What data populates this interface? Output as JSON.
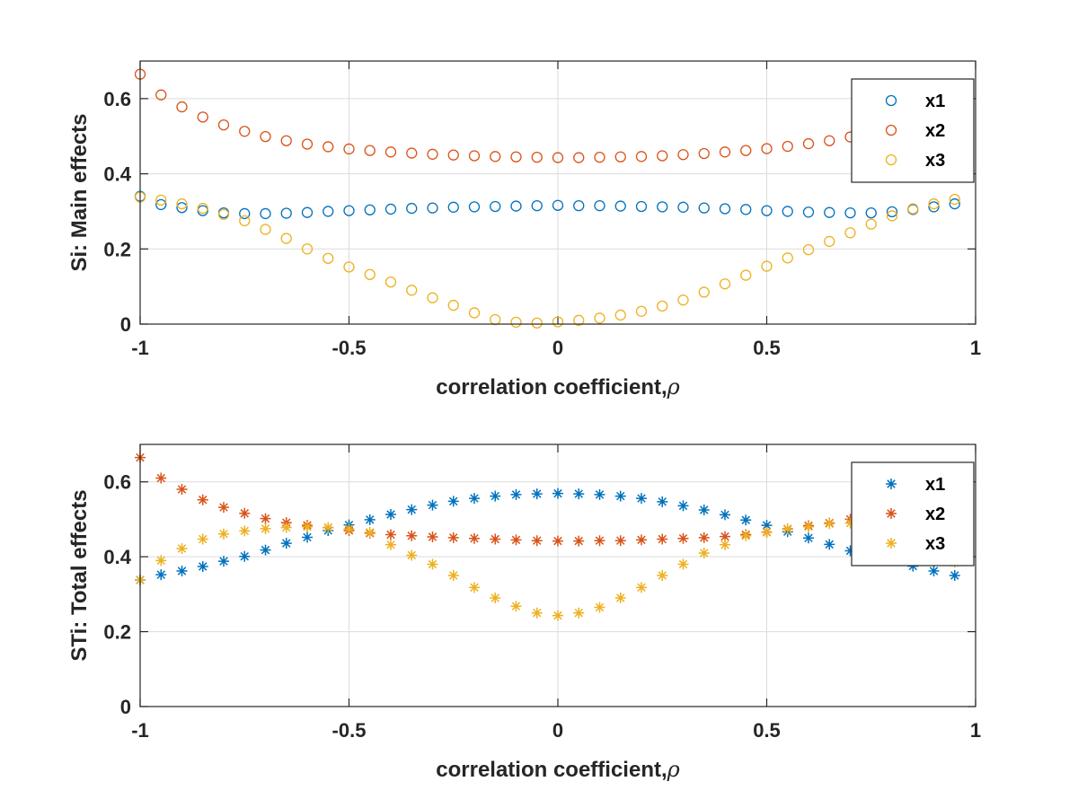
{
  "chart_data": [
    {
      "type": "scatter",
      "marker": "circle",
      "ylabel": "Si: Main effects",
      "xlabel": "correlation coefficient,",
      "xlabel_symbol": "ρ",
      "xlim": [
        -1,
        1
      ],
      "ylim": [
        0,
        0.7
      ],
      "xticks": [
        -1,
        -0.5,
        0,
        0.5,
        1
      ],
      "xtick_labels": [
        "-1",
        "-0.5",
        "0",
        "0.5",
        "1"
      ],
      "yticks": [
        0,
        0.2,
        0.4,
        0.6
      ],
      "ytick_labels": [
        "0",
        "0.2",
        "0.4",
        "0.6"
      ],
      "grid": true,
      "legend": "top-right",
      "x": [
        -1,
        -0.95,
        -0.9,
        -0.85,
        -0.8,
        -0.75,
        -0.7,
        -0.65,
        -0.6,
        -0.55,
        -0.5,
        -0.45,
        -0.4,
        -0.35,
        -0.3,
        -0.25,
        -0.2,
        -0.15,
        -0.1,
        -0.05,
        0,
        0.05,
        0.1,
        0.15,
        0.2,
        0.25,
        0.3,
        0.35,
        0.4,
        0.45,
        0.5,
        0.55,
        0.6,
        0.65,
        0.7,
        0.75,
        0.8,
        0.85,
        0.9,
        0.95
      ],
      "series": [
        {
          "name": "x1",
          "color": "#0072bd",
          "values": [
            0.34,
            0.318,
            0.31,
            0.302,
            0.296,
            0.294,
            0.294,
            0.295,
            0.297,
            0.3,
            0.302,
            0.304,
            0.306,
            0.308,
            0.309,
            0.311,
            0.312,
            0.313,
            0.314,
            0.315,
            0.316,
            0.315,
            0.315,
            0.314,
            0.313,
            0.312,
            0.311,
            0.309,
            0.307,
            0.305,
            0.302,
            0.3,
            0.298,
            0.297,
            0.296,
            0.296,
            0.299,
            0.305,
            0.312,
            0.32
          ]
        },
        {
          "name": "x2",
          "color": "#d95319",
          "values": [
            0.665,
            0.61,
            0.578,
            0.551,
            0.53,
            0.513,
            0.499,
            0.488,
            0.479,
            0.472,
            0.466,
            0.462,
            0.458,
            0.455,
            0.452,
            0.45,
            0.448,
            0.446,
            0.445,
            0.444,
            0.443,
            0.443,
            0.444,
            0.445,
            0.446,
            0.448,
            0.451,
            0.454,
            0.458,
            0.462,
            0.467,
            0.473,
            0.48,
            0.488,
            0.498,
            0.51,
            0.525,
            0.545,
            0.57,
            0.61
          ]
        },
        {
          "name": "x3",
          "color": "#edb120",
          "values": [
            0.338,
            0.33,
            0.32,
            0.308,
            0.292,
            0.275,
            0.252,
            0.228,
            0.2,
            0.175,
            0.152,
            0.132,
            0.112,
            0.09,
            0.07,
            0.05,
            0.03,
            0.012,
            0.005,
            0.003,
            0.006,
            0.01,
            0.016,
            0.024,
            0.034,
            0.048,
            0.064,
            0.085,
            0.107,
            0.13,
            0.154,
            0.176,
            0.198,
            0.22,
            0.243,
            0.266,
            0.288,
            0.307,
            0.32,
            0.332
          ]
        }
      ]
    },
    {
      "type": "scatter",
      "marker": "asterisk",
      "ylabel": "STi: Total effects",
      "xlabel": "correlation coefficient,",
      "xlabel_symbol": "ρ",
      "xlim": [
        -1,
        1
      ],
      "ylim": [
        0,
        0.7
      ],
      "xticks": [
        -1,
        -0.5,
        0,
        0.5,
        1
      ],
      "xtick_labels": [
        "-1",
        "-0.5",
        "0",
        "0.5",
        "1"
      ],
      "yticks": [
        0,
        0.2,
        0.4,
        0.6
      ],
      "ytick_labels": [
        "0",
        "0.2",
        "0.4",
        "0.6"
      ],
      "grid": true,
      "legend": "top-right",
      "x": [
        -1,
        -0.95,
        -0.9,
        -0.85,
        -0.8,
        -0.75,
        -0.7,
        -0.65,
        -0.6,
        -0.55,
        -0.5,
        -0.45,
        -0.4,
        -0.35,
        -0.3,
        -0.25,
        -0.2,
        -0.15,
        -0.1,
        -0.05,
        0,
        0.05,
        0.1,
        0.15,
        0.2,
        0.25,
        0.3,
        0.35,
        0.4,
        0.45,
        0.5,
        0.55,
        0.6,
        0.65,
        0.7,
        0.75,
        0.8,
        0.85,
        0.9,
        0.95
      ],
      "series": [
        {
          "name": "x1",
          "color": "#0072bd",
          "values": [
            0.338,
            0.352,
            0.362,
            0.374,
            0.388,
            0.401,
            0.418,
            0.436,
            0.452,
            0.47,
            0.485,
            0.499,
            0.513,
            0.526,
            0.538,
            0.548,
            0.556,
            0.562,
            0.566,
            0.568,
            0.569,
            0.568,
            0.566,
            0.562,
            0.556,
            0.547,
            0.536,
            0.525,
            0.512,
            0.498,
            0.484,
            0.467,
            0.45,
            0.433,
            0.416,
            0.403,
            0.39,
            0.375,
            0.362,
            0.35
          ]
        },
        {
          "name": "x2",
          "color": "#d95319",
          "values": [
            0.665,
            0.61,
            0.58,
            0.552,
            0.532,
            0.516,
            0.502,
            0.491,
            0.484,
            0.478,
            0.47,
            0.463,
            0.459,
            0.456,
            0.453,
            0.451,
            0.449,
            0.447,
            0.445,
            0.443,
            0.442,
            0.442,
            0.443,
            0.443,
            0.445,
            0.447,
            0.449,
            0.451,
            0.454,
            0.459,
            0.466,
            0.474,
            0.483,
            0.49,
            0.5,
            0.512,
            0.53,
            0.55,
            0.578,
            0.612
          ]
        },
        {
          "name": "x3",
          "color": "#edb120",
          "values": [
            0.338,
            0.39,
            0.422,
            0.447,
            0.461,
            0.469,
            0.475,
            0.478,
            0.48,
            0.478,
            0.474,
            0.465,
            0.432,
            0.404,
            0.38,
            0.35,
            0.318,
            0.29,
            0.268,
            0.25,
            0.243,
            0.25,
            0.265,
            0.29,
            0.318,
            0.35,
            0.38,
            0.41,
            0.432,
            0.456,
            0.465,
            0.475,
            0.48,
            0.488,
            0.49,
            0.47,
            0.44,
            0.41,
            0.39,
            0.385
          ]
        }
      ]
    }
  ]
}
